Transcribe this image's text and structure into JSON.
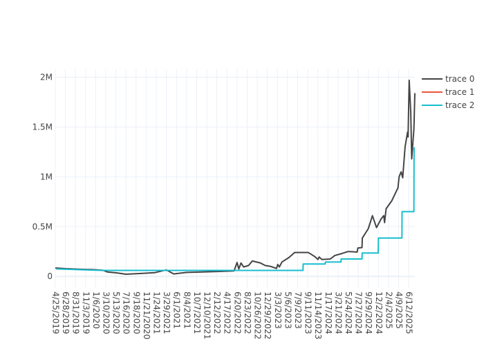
{
  "chart_data": {
    "type": "line",
    "title": "",
    "xlabel": "",
    "ylabel": "",
    "x_ticks": [
      "4/25/2019",
      "6/28/2019",
      "8/31/2019",
      "11/3/2019",
      "1/6/2020",
      "3/10/2020",
      "5/13/2020",
      "7/16/2020",
      "9/18/2020",
      "11/21/2020",
      "1/24/2021",
      "3/29/2021",
      "6/1/2021",
      "8/4/2021",
      "10/7/2021",
      "12/10/2021",
      "2/12/2022",
      "4/17/2022",
      "6/20/2022",
      "8/23/2022",
      "10/26/2022",
      "12/29/2022",
      "3/3/2023",
      "5/6/2023",
      "7/9/2023",
      "9/11/2023",
      "11/14/2023",
      "1/17/2024",
      "3/21/2024",
      "5/24/2024",
      "7/27/2024",
      "9/29/2024",
      "12/2/2024",
      "2/4/2025",
      "4/9/2025",
      "6/12/2025"
    ],
    "y_ticks": [
      {
        "value": 0,
        "label": "0"
      },
      {
        "value": 500000,
        "label": "0.5M"
      },
      {
        "value": 1000000,
        "label": "1M"
      },
      {
        "value": 1500000,
        "label": "1.5M"
      },
      {
        "value": 2000000,
        "label": "2M"
      }
    ],
    "xlim": [
      "2019-04-25",
      "2025-07-21"
    ],
    "ylim": [
      -110000,
      2080000
    ],
    "grid": true,
    "legend_position": "top-right",
    "series": [
      {
        "name": "trace 0",
        "color": "#444444",
        "mode": "line",
        "points": [
          [
            "2019-04-25",
            85000
          ],
          [
            "2019-07-01",
            78000
          ],
          [
            "2019-10-01",
            72000
          ],
          [
            "2019-12-20",
            68000
          ],
          [
            "2020-02-20",
            62000
          ],
          [
            "2020-03-20",
            45000
          ],
          [
            "2020-05-20",
            35000
          ],
          [
            "2020-07-15",
            22000
          ],
          [
            "2020-10-01",
            28000
          ],
          [
            "2021-01-15",
            38000
          ],
          [
            "2021-03-29",
            65000
          ],
          [
            "2021-05-15",
            25000
          ],
          [
            "2021-08-04",
            40000
          ],
          [
            "2021-11-15",
            45000
          ],
          [
            "2022-03-01",
            50000
          ],
          [
            "2022-06-01",
            55000
          ],
          [
            "2022-06-20",
            140000
          ],
          [
            "2022-07-01",
            75000
          ],
          [
            "2022-07-15",
            135000
          ],
          [
            "2022-08-01",
            95000
          ],
          [
            "2022-09-01",
            110000
          ],
          [
            "2022-09-25",
            155000
          ],
          [
            "2022-11-15",
            135000
          ],
          [
            "2022-12-15",
            110000
          ],
          [
            "2023-01-20",
            100000
          ],
          [
            "2023-02-25",
            80000
          ],
          [
            "2023-03-05",
            120000
          ],
          [
            "2023-03-15",
            95000
          ],
          [
            "2023-04-01",
            145000
          ],
          [
            "2023-05-15",
            190000
          ],
          [
            "2023-06-20",
            240000
          ],
          [
            "2023-08-01",
            240000
          ],
          [
            "2023-09-15",
            240000
          ],
          [
            "2023-10-25",
            200000
          ],
          [
            "2023-11-15",
            170000
          ],
          [
            "2023-11-22",
            195000
          ],
          [
            "2023-12-10",
            170000
          ],
          [
            "2024-02-01",
            175000
          ],
          [
            "2024-03-01",
            210000
          ],
          [
            "2024-04-15",
            230000
          ],
          [
            "2024-05-24",
            250000
          ],
          [
            "2024-06-20",
            248000
          ],
          [
            "2024-07-20",
            245000
          ],
          [
            "2024-07-25",
            285000
          ],
          [
            "2024-08-20",
            290000
          ],
          [
            "2024-08-22",
            385000
          ],
          [
            "2024-09-29",
            480000
          ],
          [
            "2024-10-25",
            610000
          ],
          [
            "2024-11-20",
            490000
          ],
          [
            "2024-12-20",
            580000
          ],
          [
            "2025-01-05",
            610000
          ],
          [
            "2025-01-10",
            540000
          ],
          [
            "2025-01-20",
            680000
          ],
          [
            "2025-02-25",
            760000
          ],
          [
            "2025-04-05",
            890000
          ],
          [
            "2025-04-12",
            1000000
          ],
          [
            "2025-04-25",
            1050000
          ],
          [
            "2025-05-05",
            990000
          ],
          [
            "2025-05-20",
            1300000
          ],
          [
            "2025-06-05",
            1450000
          ],
          [
            "2025-06-08",
            1400000
          ],
          [
            "2025-06-15",
            1970000
          ],
          [
            "2025-06-25",
            1650000
          ],
          [
            "2025-07-01",
            1180000
          ],
          [
            "2025-07-15",
            1480000
          ],
          [
            "2025-07-21",
            1840000
          ]
        ]
      },
      {
        "name": "trace 1",
        "color": "#ef553b",
        "mode": "line",
        "points": []
      },
      {
        "name": "trace 2",
        "color": "#17becf",
        "mode": "step",
        "points": [
          [
            "2019-05-01",
            75000
          ],
          [
            "2020-02-20",
            60000
          ],
          [
            "2020-03-10",
            60000
          ],
          [
            "2022-08-23",
            60000
          ],
          [
            "2023-08-12",
            60000
          ],
          [
            "2023-08-13",
            125000
          ],
          [
            "2023-12-31",
            125000
          ],
          [
            "2024-01-01",
            145000
          ],
          [
            "2024-04-09",
            145000
          ],
          [
            "2024-04-10",
            175000
          ],
          [
            "2024-08-20",
            175000
          ],
          [
            "2024-08-21",
            235000
          ],
          [
            "2024-12-01",
            235000
          ],
          [
            "2024-12-02",
            385000
          ],
          [
            "2025-04-30",
            385000
          ],
          [
            "2025-05-01",
            650000
          ],
          [
            "2025-07-15",
            650000
          ],
          [
            "2025-07-16",
            1290000
          ],
          [
            "2025-07-21",
            1290000
          ]
        ]
      }
    ]
  }
}
